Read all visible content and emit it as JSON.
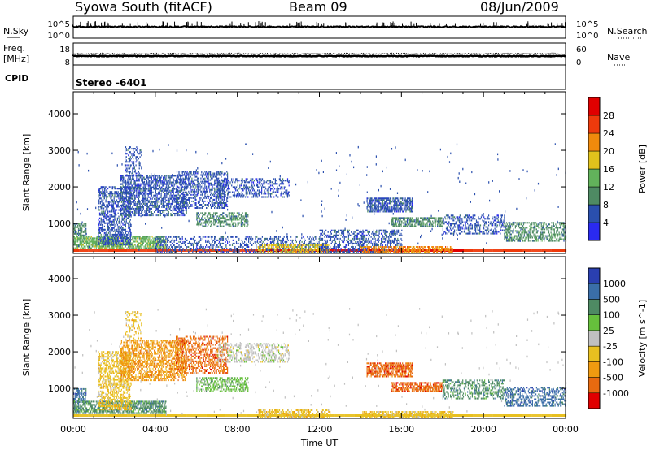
{
  "header": {
    "title": "Syowa South (fitACF)",
    "beam": "Beam 09",
    "date": "08/Jun/2009"
  },
  "strips": {
    "nsky_label": "N.Sky",
    "nsky_ticks": [
      "10^5",
      "10^0"
    ],
    "nsearch_label": "N.Search",
    "nsearch_ticks": [
      "10^5",
      "10^0"
    ],
    "freq_label_1": "Freq.",
    "freq_label_2": "[MHz]",
    "freq_ticks": [
      "18",
      "8"
    ],
    "nave_label": "Nave",
    "nave_ticks": [
      "60",
      "0"
    ],
    "cpid_label": "CPID",
    "cpid_value": "Stereo -6401"
  },
  "colors": {
    "power": [
      "#2a2af0",
      "#2a4fae",
      "#4e8a63",
      "#62b25b",
      "#e0c21c",
      "#f08a0c",
      "#ee3a0c",
      "#e00000"
    ],
    "velocity": [
      "#2a3fb0",
      "#3a6ea8",
      "#4e8a63",
      "#66c03c",
      "#c0c0c0",
      "#e8c020",
      "#f09a10",
      "#e86a10",
      "#e00000"
    ]
  },
  "chart_data": [
    {
      "type": "heatmap",
      "name": "power",
      "xlabel": "",
      "ylabel": "Slant Range [km]",
      "xlim": [
        0,
        24
      ],
      "ylim": [
        180,
        4600
      ],
      "yticks": [
        "1000",
        "2000",
        "3000",
        "4000"
      ],
      "colorbar_label": "Power [dB]",
      "colorbar_ticks": [
        "4",
        "8",
        "12",
        "16",
        "20",
        "24",
        "28"
      ],
      "regions": [
        {
          "t": [
            0.0,
            0.6
          ],
          "r": [
            650,
            1000
          ],
          "level": 2,
          "density": 0.6
        },
        {
          "t": [
            0.0,
            4.5
          ],
          "r": [
            300,
            650
          ],
          "level": 3,
          "density": 0.65
        },
        {
          "t": [
            1.2,
            2.8
          ],
          "r": [
            400,
            2000
          ],
          "level": 1,
          "density": 0.45
        },
        {
          "t": [
            2.3,
            5.5
          ],
          "r": [
            1200,
            2300
          ],
          "level": 1,
          "density": 0.5
        },
        {
          "t": [
            2.5,
            3.3
          ],
          "r": [
            2300,
            3100
          ],
          "level": 1,
          "density": 0.25
        },
        {
          "t": [
            5.0,
            7.5
          ],
          "r": [
            1400,
            2400
          ],
          "level": 1,
          "density": 0.4
        },
        {
          "t": [
            6.0,
            8.5
          ],
          "r": [
            900,
            1300
          ],
          "level": 2,
          "density": 0.45
        },
        {
          "t": [
            7.0,
            10.5
          ],
          "r": [
            1700,
            2200
          ],
          "level": 1,
          "density": 0.35
        },
        {
          "t": [
            4.0,
            12.0
          ],
          "r": [
            200,
            650
          ],
          "level": 1,
          "density": 0.3
        },
        {
          "t": [
            9.0,
            12.5
          ],
          "r": [
            200,
            400
          ],
          "level": 4,
          "density": 0.5
        },
        {
          "t": [
            12.0,
            16.0
          ],
          "r": [
            200,
            800
          ],
          "level": 1,
          "density": 0.4
        },
        {
          "t": [
            14.3,
            16.5
          ],
          "r": [
            1300,
            1700
          ],
          "level": 1,
          "density": 0.65
        },
        {
          "t": [
            15.5,
            18.0
          ],
          "r": [
            900,
            1150
          ],
          "level": 2,
          "density": 0.6
        },
        {
          "t": [
            14.0,
            18.5
          ],
          "r": [
            200,
            380
          ],
          "level": 5,
          "density": 0.55
        },
        {
          "t": [
            18.0,
            21.0
          ],
          "r": [
            700,
            1200
          ],
          "level": 1,
          "density": 0.35
        },
        {
          "t": [
            21.0,
            24.0
          ],
          "r": [
            500,
            1000
          ],
          "level": 2,
          "density": 0.4
        }
      ]
    },
    {
      "type": "heatmap",
      "name": "velocity",
      "xlabel": "Time UT",
      "ylabel": "Slant Range [km]",
      "xlim": [
        0,
        24
      ],
      "ylim": [
        180,
        4600
      ],
      "xticks": [
        "00:00",
        "04:00",
        "08:00",
        "12:00",
        "16:00",
        "20:00",
        "00:00"
      ],
      "yticks": [
        "1000",
        "2000",
        "3000",
        "4000"
      ],
      "colorbar_label": "Velocity [m s^-1]",
      "colorbar_ticks": [
        "1000",
        "500",
        "100",
        "25",
        "-25",
        "-100",
        "-500",
        "-1000"
      ],
      "regions": [
        {
          "t": [
            0.0,
            0.6
          ],
          "r": [
            600,
            1000
          ],
          "level": 1,
          "density": 0.6
        },
        {
          "t": [
            0.0,
            4.5
          ],
          "r": [
            300,
            650
          ],
          "level": 2,
          "density": 0.6
        },
        {
          "t": [
            1.2,
            2.8
          ],
          "r": [
            400,
            2000
          ],
          "level": 5,
          "density": 0.45
        },
        {
          "t": [
            2.3,
            5.5
          ],
          "r": [
            1200,
            2300
          ],
          "level": 6,
          "density": 0.5
        },
        {
          "t": [
            2.5,
            3.3
          ],
          "r": [
            2300,
            3100
          ],
          "level": 5,
          "density": 0.25
        },
        {
          "t": [
            5.0,
            7.5
          ],
          "r": [
            1400,
            2400
          ],
          "level": 7,
          "density": 0.4
        },
        {
          "t": [
            6.0,
            8.5
          ],
          "r": [
            900,
            1300
          ],
          "level": 3,
          "density": 0.45
        },
        {
          "t": [
            7.0,
            10.5
          ],
          "r": [
            1700,
            2200
          ],
          "level": 4,
          "density": 0.35
        },
        {
          "t": [
            9.0,
            12.5
          ],
          "r": [
            200,
            400
          ],
          "level": 5,
          "density": 0.5
        },
        {
          "t": [
            14.3,
            16.5
          ],
          "r": [
            1300,
            1700
          ],
          "level": 7,
          "density": 0.65
        },
        {
          "t": [
            15.5,
            18.0
          ],
          "r": [
            900,
            1150
          ],
          "level": 7,
          "density": 0.6
        },
        {
          "t": [
            14.0,
            18.5
          ],
          "r": [
            200,
            380
          ],
          "level": 5,
          "density": 0.55
        },
        {
          "t": [
            18.0,
            21.0
          ],
          "r": [
            700,
            1200
          ],
          "level": 2,
          "density": 0.35
        },
        {
          "t": [
            21.0,
            24.0
          ],
          "r": [
            500,
            1000
          ],
          "level": 1,
          "density": 0.4
        }
      ]
    }
  ]
}
